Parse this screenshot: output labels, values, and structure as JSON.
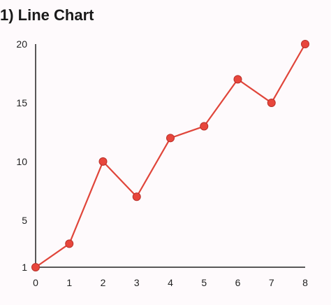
{
  "chart_data": {
    "type": "line",
    "title": "1) Line Chart",
    "xlabel": "",
    "ylabel": "",
    "x": [
      0,
      1,
      2,
      3,
      4,
      5,
      6,
      7,
      8
    ],
    "series": [
      {
        "values": [
          1,
          3,
          10,
          7,
          12,
          13,
          17,
          15,
          20
        ]
      }
    ],
    "xlim": [
      0,
      8
    ],
    "ylim": [
      1,
      20
    ],
    "xticks": [
      0,
      1,
      2,
      3,
      4,
      5,
      6,
      7,
      8
    ],
    "yticks": [
      1,
      5,
      10,
      15,
      20
    ],
    "grid": false,
    "colors": {
      "line": "#e0453a",
      "marker_fill": "#e8463c",
      "marker_stroke": "#b8302a",
      "axis": "#222222"
    }
  }
}
